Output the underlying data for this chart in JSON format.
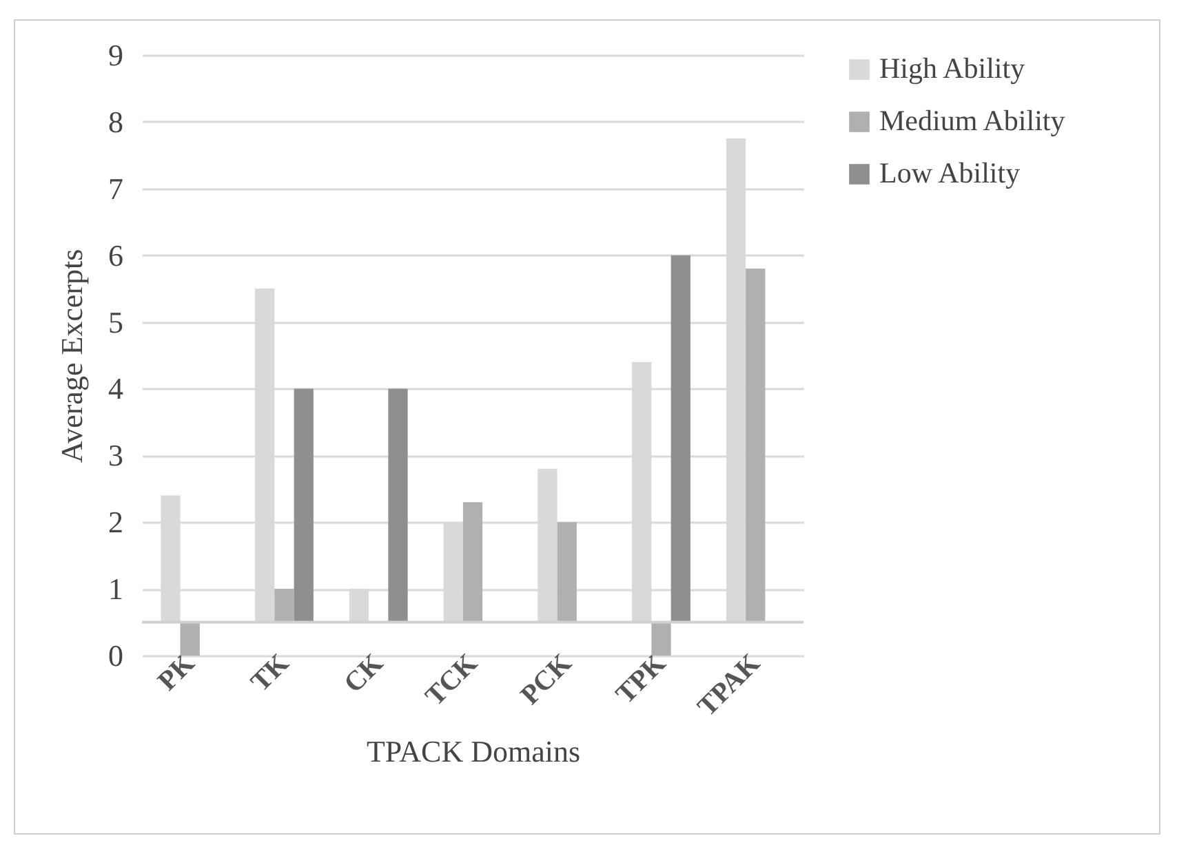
{
  "chart_data": {
    "type": "bar",
    "xlabel": "TPACK Domains",
    "ylabel": "Average Excerpts",
    "categories": [
      "PK",
      "TK",
      "CK",
      "TCK",
      "PCK",
      "TPK",
      "TPAK"
    ],
    "series": [
      {
        "name": "High Ability",
        "color": "#d9d9d9",
        "base": [
          0.5,
          0.5,
          0.5,
          0.5,
          0.5,
          0.5,
          0.5
        ],
        "values": [
          1.9,
          5,
          0.5,
          1.5,
          2.3,
          3.9,
          7.25
        ]
      },
      {
        "name": "Medium Ability",
        "color": "#b0b0b0",
        "base": [
          0.5,
          0.5,
          null,
          0.5,
          0.5,
          0.5,
          0.5
        ],
        "values": [
          -0.5,
          0.5,
          null,
          1.8,
          1.5,
          -0.5,
          5.3
        ]
      },
      {
        "name": "Low Ability",
        "color": "#8f8f8f",
        "base": [
          null,
          0.5,
          0.5,
          null,
          null,
          0.5,
          null
        ],
        "values": [
          null,
          3.5,
          3.5,
          null,
          null,
          5.5,
          null
        ]
      }
    ],
    "ref_lines": [
      {
        "axis": "y",
        "value": 0.5,
        "color": "#d0d0d0"
      }
    ],
    "ylim": [
      0,
      9
    ],
    "yticks": [
      0,
      1,
      2,
      3,
      4,
      5,
      6,
      7,
      8,
      9
    ],
    "grid": "y",
    "legend": "right"
  }
}
